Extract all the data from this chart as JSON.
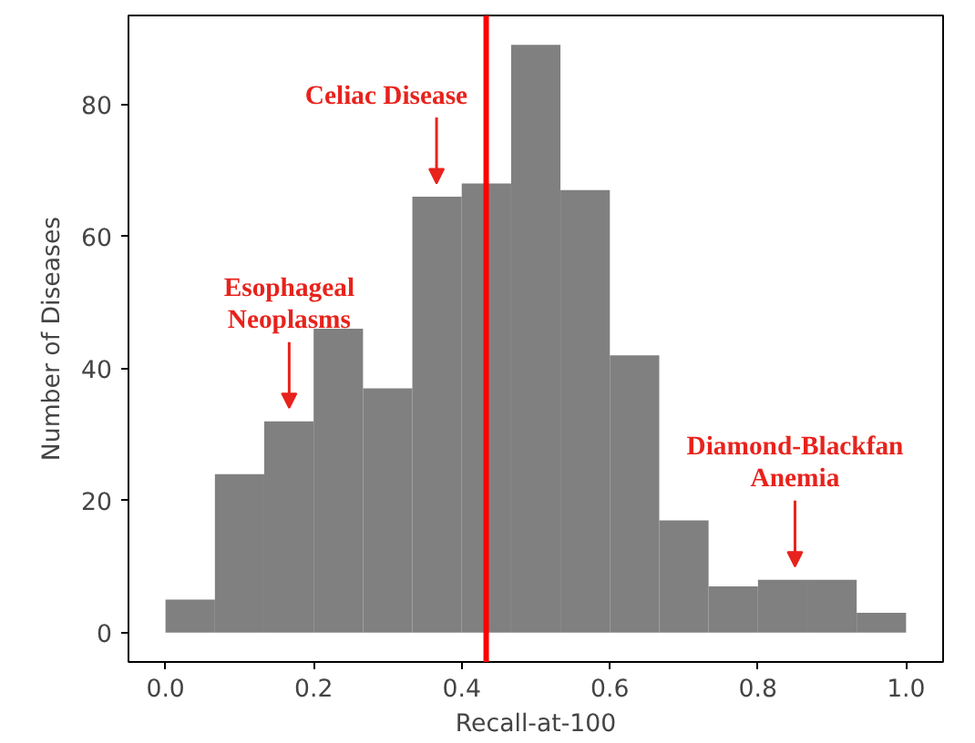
{
  "chart_data": {
    "type": "histogram",
    "xlabel": "Recall-at-100",
    "ylabel": "Number of Diseases",
    "bins": [
      0,
      0.0667,
      0.1333,
      0.2,
      0.2667,
      0.3333,
      0.4,
      0.4667,
      0.5333,
      0.6,
      0.6667,
      0.7333,
      0.8,
      0.8667,
      0.9333,
      1.0
    ],
    "values": [
      5,
      24,
      32,
      46,
      37,
      66,
      68,
      89,
      67,
      42,
      17,
      7,
      8,
      8,
      3
    ],
    "color": "#808080",
    "xlim": [
      -0.05,
      1.05
    ],
    "ylim": [
      -4.45,
      93.45
    ],
    "xticks": [
      {
        "value": 0,
        "label": "0.0"
      },
      {
        "value": 0.2,
        "label": "0.2"
      },
      {
        "value": 0.4,
        "label": "0.4"
      },
      {
        "value": 0.6,
        "label": "0.6"
      },
      {
        "value": 0.8,
        "label": "0.8"
      },
      {
        "value": 1.0,
        "label": "1.0"
      }
    ],
    "yticks": [
      0,
      20,
      40,
      60,
      80
    ],
    "ref_lines": [
      {
        "axis": "x",
        "value": 0.433,
        "color": "#ff0000"
      }
    ],
    "annotations": [
      {
        "text": "Celiac Disease",
        "x": 0.366,
        "y": 67
      },
      {
        "text": "Esophageal\nNeoplasms",
        "x": 0.167,
        "y": 33
      },
      {
        "text": "Diamond-Blackfan\nAnemia",
        "x": 0.85,
        "y": 9
      }
    ],
    "grid": false
  }
}
